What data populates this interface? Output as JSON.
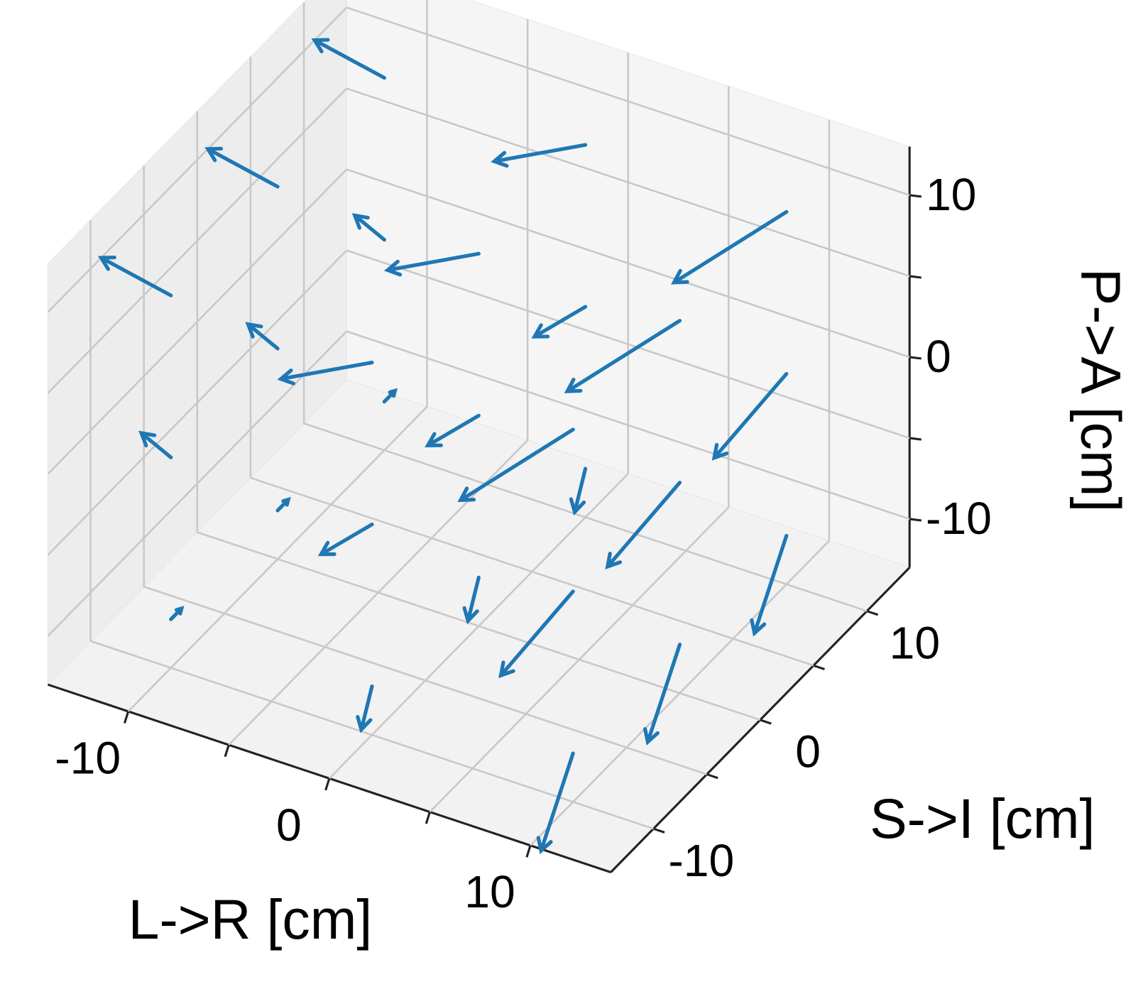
{
  "chart_data": {
    "type": "quiver3d",
    "xlabel": "L->R [cm]",
    "ylabel": "S->I [cm]",
    "zlabel": "P->A [cm]",
    "xlim": [
      -14,
      14
    ],
    "ylim": [
      -14,
      14
    ],
    "zlim": [
      -13,
      13
    ],
    "xticks": [
      -10,
      {
        "value": -5
      },
      0,
      {
        "value": 5
      },
      10
    ],
    "yticks": [
      -10,
      {
        "value": -5
      },
      0,
      {
        "value": 5
      },
      10
    ],
    "zticks": [
      -10,
      {
        "value": -5
      },
      0,
      {
        "value": 5
      },
      10
    ],
    "grid": true,
    "color": "#1f77b4",
    "arrows": {
      "x": [
        -10,
        -10,
        -10,
        -10,
        -10,
        -10,
        -10,
        -10,
        -10,
        0,
        0,
        0,
        0,
        0,
        0,
        0,
        0,
        0,
        10,
        10,
        10,
        10,
        10,
        10,
        10,
        10,
        10
      ],
      "y": [
        -10,
        -10,
        -10,
        0,
        0,
        0,
        10,
        10,
        10,
        -10,
        -10,
        -10,
        0,
        0,
        0,
        10,
        10,
        10,
        -10,
        -10,
        -10,
        0,
        0,
        0,
        10,
        10,
        10
      ],
      "z": [
        -10,
        0,
        10,
        -10,
        0,
        10,
        -10,
        0,
        10,
        -10,
        0,
        10,
        -10,
        0,
        10,
        -10,
        0,
        10,
        -10,
        0,
        10,
        -10,
        0,
        10,
        -10,
        0,
        10
      ],
      "u": [
        0,
        -2,
        -4,
        0,
        -2,
        -4,
        0,
        -2,
        -4,
        0,
        -2,
        -4,
        0,
        -2,
        -4,
        0,
        -2,
        -4,
        0,
        -2,
        -4,
        0,
        -2,
        -4,
        0,
        -2,
        -4
      ],
      "v": [
        1,
        1,
        1,
        1,
        1,
        1,
        1,
        1,
        1,
        -1,
        -1,
        -1,
        -1,
        -1,
        -1,
        -1,
        -1,
        -1,
        -3,
        -3,
        -3,
        -3,
        -3,
        -3,
        -3,
        -3,
        -3
      ],
      "w": [
        0,
        0,
        0,
        0,
        0,
        0,
        0,
        0,
        0,
        -2,
        -2,
        -2,
        -2,
        -2,
        -2,
        -2,
        -2,
        -2,
        -4,
        -4,
        -4,
        -4,
        -4,
        -4,
        -4,
        -4,
        -4
      ]
    }
  }
}
